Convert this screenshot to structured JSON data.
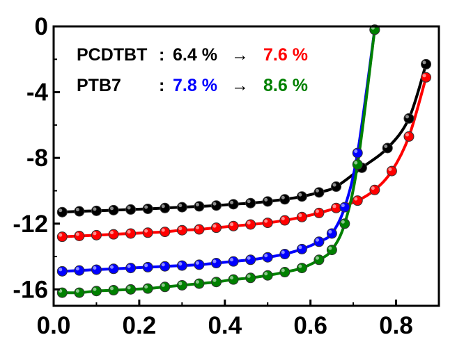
{
  "chart_data": {
    "type": "line",
    "title": "",
    "xlabel": "",
    "ylabel": "",
    "xlim": [
      0.0,
      0.9
    ],
    "ylim": [
      -17,
      0
    ],
    "x_ticks": [
      0.0,
      0.2,
      0.4,
      0.6,
      0.8
    ],
    "x_tick_labels": [
      "0.0",
      "0.2",
      "0.4",
      "0.6",
      "0.8"
    ],
    "y_ticks": [
      0,
      -4,
      -8,
      -12,
      -16
    ],
    "y_tick_labels": [
      "0",
      "-4",
      "-8",
      "-12",
      "-16"
    ],
    "grid": false,
    "annotations": [
      {
        "parts": [
          {
            "text": "PCDTBT",
            "color": "#000000"
          },
          {
            "text": " : ",
            "color": "#000000"
          },
          {
            "text": "6.4 %",
            "color": "#000000"
          },
          {
            "text": " → ",
            "color": "#000000"
          },
          {
            "text": "7.6 %",
            "color": "#ff0000"
          }
        ]
      },
      {
        "parts": [
          {
            "text": "PTB7",
            "color": "#000000"
          },
          {
            "text": " : ",
            "color": "#000000"
          },
          {
            "text": "7.8 %",
            "color": "#0000ff"
          },
          {
            "text": " → ",
            "color": "#000000"
          },
          {
            "text": "8.6 %",
            "color": "#008000"
          }
        ]
      }
    ],
    "series": [
      {
        "color": "#000000",
        "x": [
          0.02,
          0.06,
          0.1,
          0.14,
          0.18,
          0.22,
          0.26,
          0.3,
          0.34,
          0.38,
          0.42,
          0.46,
          0.5,
          0.54,
          0.58,
          0.62,
          0.66,
          0.72,
          0.78,
          0.83,
          0.87
        ],
        "y": [
          -11.3,
          -11.25,
          -11.22,
          -11.18,
          -11.14,
          -11.1,
          -11.05,
          -11.0,
          -10.95,
          -10.9,
          -10.82,
          -10.75,
          -10.65,
          -10.52,
          -10.35,
          -10.1,
          -9.75,
          -8.6,
          -7.4,
          -5.6,
          -2.3
        ]
      },
      {
        "color": "#ff0000",
        "x": [
          0.02,
          0.06,
          0.1,
          0.14,
          0.18,
          0.22,
          0.26,
          0.3,
          0.34,
          0.38,
          0.42,
          0.46,
          0.5,
          0.54,
          0.58,
          0.62,
          0.66,
          0.71,
          0.75,
          0.79,
          0.83,
          0.87
        ],
        "y": [
          -12.8,
          -12.75,
          -12.7,
          -12.65,
          -12.6,
          -12.55,
          -12.5,
          -12.4,
          -12.35,
          -12.25,
          -12.15,
          -12.05,
          -11.95,
          -11.8,
          -11.6,
          -11.35,
          -11.05,
          -10.6,
          -9.95,
          -8.8,
          -6.7,
          -3.1
        ]
      },
      {
        "color": "#0000ff",
        "x": [
          0.02,
          0.06,
          0.1,
          0.14,
          0.18,
          0.22,
          0.26,
          0.3,
          0.34,
          0.38,
          0.42,
          0.46,
          0.5,
          0.54,
          0.58,
          0.62,
          0.65,
          0.68,
          0.71,
          0.75
        ],
        "y": [
          -14.9,
          -14.85,
          -14.8,
          -14.75,
          -14.7,
          -14.65,
          -14.6,
          -14.55,
          -14.5,
          -14.4,
          -14.3,
          -14.2,
          -14.05,
          -13.85,
          -13.55,
          -13.1,
          -12.6,
          -11.0,
          -7.7,
          -0.2
        ]
      },
      {
        "color": "#008000",
        "x": [
          0.02,
          0.06,
          0.1,
          0.14,
          0.18,
          0.22,
          0.26,
          0.3,
          0.34,
          0.38,
          0.42,
          0.46,
          0.5,
          0.54,
          0.58,
          0.62,
          0.65,
          0.68,
          0.71,
          0.75
        ],
        "y": [
          -16.2,
          -16.2,
          -16.1,
          -16.05,
          -16.0,
          -15.95,
          -15.85,
          -15.75,
          -15.65,
          -15.55,
          -15.4,
          -15.3,
          -15.15,
          -14.95,
          -14.7,
          -14.2,
          -13.6,
          -12.0,
          -8.4,
          -0.2
        ]
      }
    ]
  }
}
